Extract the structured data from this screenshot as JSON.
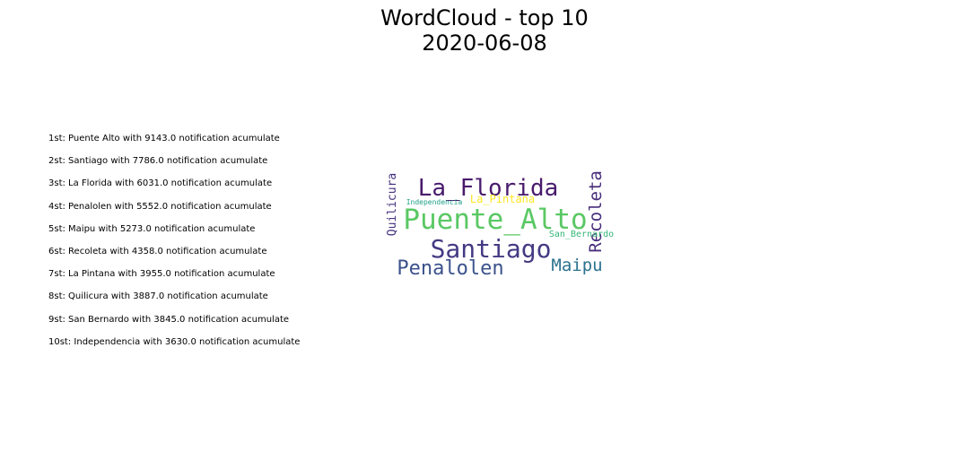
{
  "title": {
    "line1": "WordCloud - top 10",
    "line2": "2020-06-08"
  },
  "ranking": [
    "1st: Puente Alto with 9143.0 notification acumulate",
    "2st: Santiago with 7786.0 notification acumulate",
    "3st: La Florida with 6031.0 notification acumulate",
    "4st: Penalolen with 5552.0 notification acumulate",
    "5st: Maipu with 5273.0 notification acumulate",
    "6st: Recoleta with 4358.0 notification acumulate",
    "7st: La Pintana with 3955.0 notification acumulate",
    "8st: Quilicura with 3887.0 notification acumulate",
    "9st: San Bernardo with 3845.0 notification acumulate",
    "10st: Independencia with 3630.0 notification acumulate"
  ],
  "chart_data": {
    "type": "wordcloud",
    "words": [
      {
        "text": "Puente_Alto",
        "value": 9143.0,
        "color": "#5ac864"
      },
      {
        "text": "Santiago",
        "value": 7786.0,
        "color": "#443a83"
      },
      {
        "text": "La_Florida",
        "value": 6031.0,
        "color": "#481a6c"
      },
      {
        "text": "Penalolen",
        "value": 5552.0,
        "color": "#3b528b"
      },
      {
        "text": "Maipu",
        "value": 5273.0,
        "color": "#2c728e"
      },
      {
        "text": "Recoleta",
        "value": 4358.0,
        "color": "#472d7b"
      },
      {
        "text": "La_Pintana",
        "value": 3955.0,
        "color": "#fde725"
      },
      {
        "text": "Quilicura",
        "value": 3887.0,
        "color": "#46327e"
      },
      {
        "text": "San_Bernardo",
        "value": 3845.0,
        "color": "#35b779"
      },
      {
        "text": "Independencia",
        "value": 3630.0,
        "color": "#1fa187"
      }
    ]
  }
}
